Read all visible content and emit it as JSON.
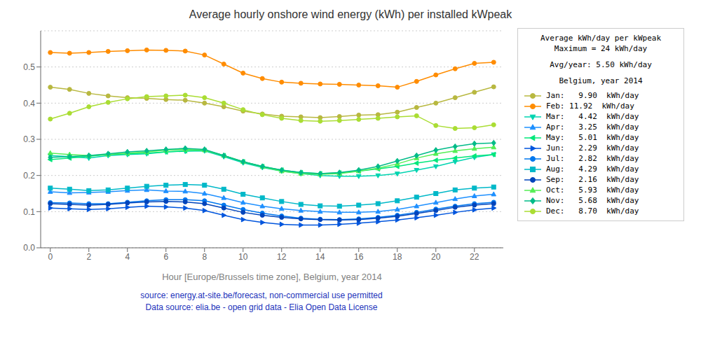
{
  "chart_data": {
    "type": "line",
    "title": "Average hourly onshore wind energy (kWh) per installed kWpeak",
    "x_label": "Hour [Europe/Brussels time zone], Belgium, year 2014",
    "legend_title": [
      "Average kWh/day per kWpeak",
      "Maximum = 24 kWh/day",
      "Avg/year: 5.50 kWh/day",
      "Belgium, year 2014"
    ],
    "annotations": [
      "source: energy.at-site.be/forecast, non-commercial use permitted",
      "Data source: elia.be - open grid data - Elia Open Data License"
    ],
    "x": [
      0,
      1,
      2,
      3,
      4,
      5,
      6,
      7,
      8,
      9,
      10,
      11,
      12,
      13,
      14,
      15,
      16,
      17,
      18,
      19,
      20,
      21,
      22,
      23
    ],
    "xlim": [
      -0.5,
      23.5
    ],
    "xticks": [
      0,
      2,
      4,
      6,
      8,
      10,
      12,
      14,
      16,
      18,
      20,
      22
    ],
    "ylim": [
      0.0,
      0.6
    ],
    "yticks": [
      {
        "value": 0.0,
        "label": "0.0"
      },
      0.1,
      0.2,
      0.3,
      0.4,
      0.5
    ],
    "grid": "y",
    "series": [
      {
        "name": "Jan:   9.90  kWh/day",
        "color": "#b8b840",
        "marker": "circle",
        "values": [
          0.444,
          0.438,
          0.427,
          0.42,
          0.415,
          0.413,
          0.41,
          0.408,
          0.4,
          0.39,
          0.378,
          0.37,
          0.364,
          0.362,
          0.36,
          0.363,
          0.367,
          0.368,
          0.375,
          0.388,
          0.4,
          0.415,
          0.43,
          0.445
        ]
      },
      {
        "name": "Feb: 11.92  kWh/day",
        "color": "#ff8c00",
        "marker": "circle",
        "values": [
          0.54,
          0.538,
          0.54,
          0.543,
          0.545,
          0.547,
          0.546,
          0.544,
          0.533,
          0.508,
          0.483,
          0.468,
          0.458,
          0.455,
          0.453,
          0.452,
          0.45,
          0.448,
          0.444,
          0.46,
          0.478,
          0.495,
          0.51,
          0.513
        ]
      },
      {
        "name": "Mar:   4.42  kWh/day",
        "color": "#00d4b0",
        "marker": "triangle-down",
        "values": [
          0.255,
          0.252,
          0.248,
          0.255,
          0.258,
          0.26,
          0.265,
          0.267,
          0.268,
          0.252,
          0.235,
          0.222,
          0.212,
          0.205,
          0.2,
          0.198,
          0.198,
          0.2,
          0.205,
          0.215,
          0.225,
          0.238,
          0.25,
          0.258
        ]
      },
      {
        "name": "Apr:   3.25  kWh/day",
        "color": "#1e90ff",
        "marker": "triangle-up",
        "values": [
          0.155,
          0.152,
          0.153,
          0.155,
          0.158,
          0.16,
          0.157,
          0.156,
          0.15,
          0.138,
          0.125,
          0.115,
          0.108,
          0.103,
          0.1,
          0.098,
          0.098,
          0.1,
          0.106,
          0.115,
          0.125,
          0.135,
          0.143,
          0.148
        ]
      },
      {
        "name": "May:   5.01  kWh/day",
        "color": "#00e87a",
        "marker": "triangle-left",
        "values": [
          0.244,
          0.248,
          0.253,
          0.258,
          0.26,
          0.262,
          0.265,
          0.268,
          0.27,
          0.255,
          0.238,
          0.225,
          0.215,
          0.208,
          0.205,
          0.207,
          0.212,
          0.218,
          0.225,
          0.234,
          0.242,
          0.248,
          0.254,
          0.258
        ]
      },
      {
        "name": "Jun:   2.29  kWh/day",
        "color": "#0055dd",
        "marker": "triangle-right",
        "values": [
          0.11,
          0.108,
          0.106,
          0.108,
          0.112,
          0.115,
          0.113,
          0.11,
          0.103,
          0.09,
          0.078,
          0.07,
          0.065,
          0.063,
          0.063,
          0.065,
          0.068,
          0.072,
          0.077,
          0.083,
          0.09,
          0.098,
          0.105,
          0.11
        ]
      },
      {
        "name": "Jul:   2.82  kWh/day",
        "color": "#0077ee",
        "marker": "circle",
        "values": [
          0.125,
          0.124,
          0.122,
          0.122,
          0.126,
          0.13,
          0.133,
          0.133,
          0.13,
          0.118,
          0.106,
          0.096,
          0.088,
          0.082,
          0.079,
          0.078,
          0.08,
          0.084,
          0.09,
          0.098,
          0.107,
          0.115,
          0.122,
          0.126
        ]
      },
      {
        "name": "Aug:   4.29  kWh/day",
        "color": "#00b8c8",
        "marker": "square",
        "values": [
          0.165,
          0.162,
          0.158,
          0.16,
          0.165,
          0.17,
          0.173,
          0.175,
          0.173,
          0.162,
          0.148,
          0.138,
          0.128,
          0.12,
          0.116,
          0.115,
          0.118,
          0.122,
          0.13,
          0.14,
          0.15,
          0.16,
          0.165,
          0.168
        ]
      },
      {
        "name": "Sep:   2.16  kWh/day",
        "color": "#0044bb",
        "marker": "circle",
        "values": [
          0.122,
          0.12,
          0.118,
          0.12,
          0.124,
          0.127,
          0.128,
          0.127,
          0.122,
          0.11,
          0.098,
          0.09,
          0.084,
          0.08,
          0.078,
          0.077,
          0.078,
          0.082,
          0.087,
          0.095,
          0.103,
          0.112,
          0.118,
          0.122
        ]
      },
      {
        "name": "Oct:   5.93  kWh/day",
        "color": "#55ee55",
        "marker": "triangle-up",
        "values": [
          0.262,
          0.258,
          0.255,
          0.258,
          0.262,
          0.265,
          0.27,
          0.272,
          0.27,
          0.255,
          0.238,
          0.224,
          0.212,
          0.205,
          0.203,
          0.205,
          0.212,
          0.22,
          0.232,
          0.248,
          0.26,
          0.268,
          0.274,
          0.278
        ]
      },
      {
        "name": "Nov:   5.68  kWh/day",
        "color": "#00bb88",
        "marker": "diamond",
        "values": [
          0.25,
          0.252,
          0.255,
          0.26,
          0.265,
          0.268,
          0.272,
          0.275,
          0.272,
          0.255,
          0.238,
          0.225,
          0.215,
          0.208,
          0.205,
          0.208,
          0.215,
          0.225,
          0.24,
          0.255,
          0.27,
          0.28,
          0.288,
          0.29
        ]
      },
      {
        "name": "Dec:   8.70  kWh/day",
        "color": "#aadd33",
        "marker": "circle",
        "values": [
          0.356,
          0.372,
          0.39,
          0.402,
          0.412,
          0.418,
          0.42,
          0.422,
          0.415,
          0.4,
          0.382,
          0.368,
          0.358,
          0.352,
          0.35,
          0.352,
          0.355,
          0.358,
          0.362,
          0.365,
          0.338,
          0.33,
          0.332,
          0.34
        ]
      }
    ]
  }
}
